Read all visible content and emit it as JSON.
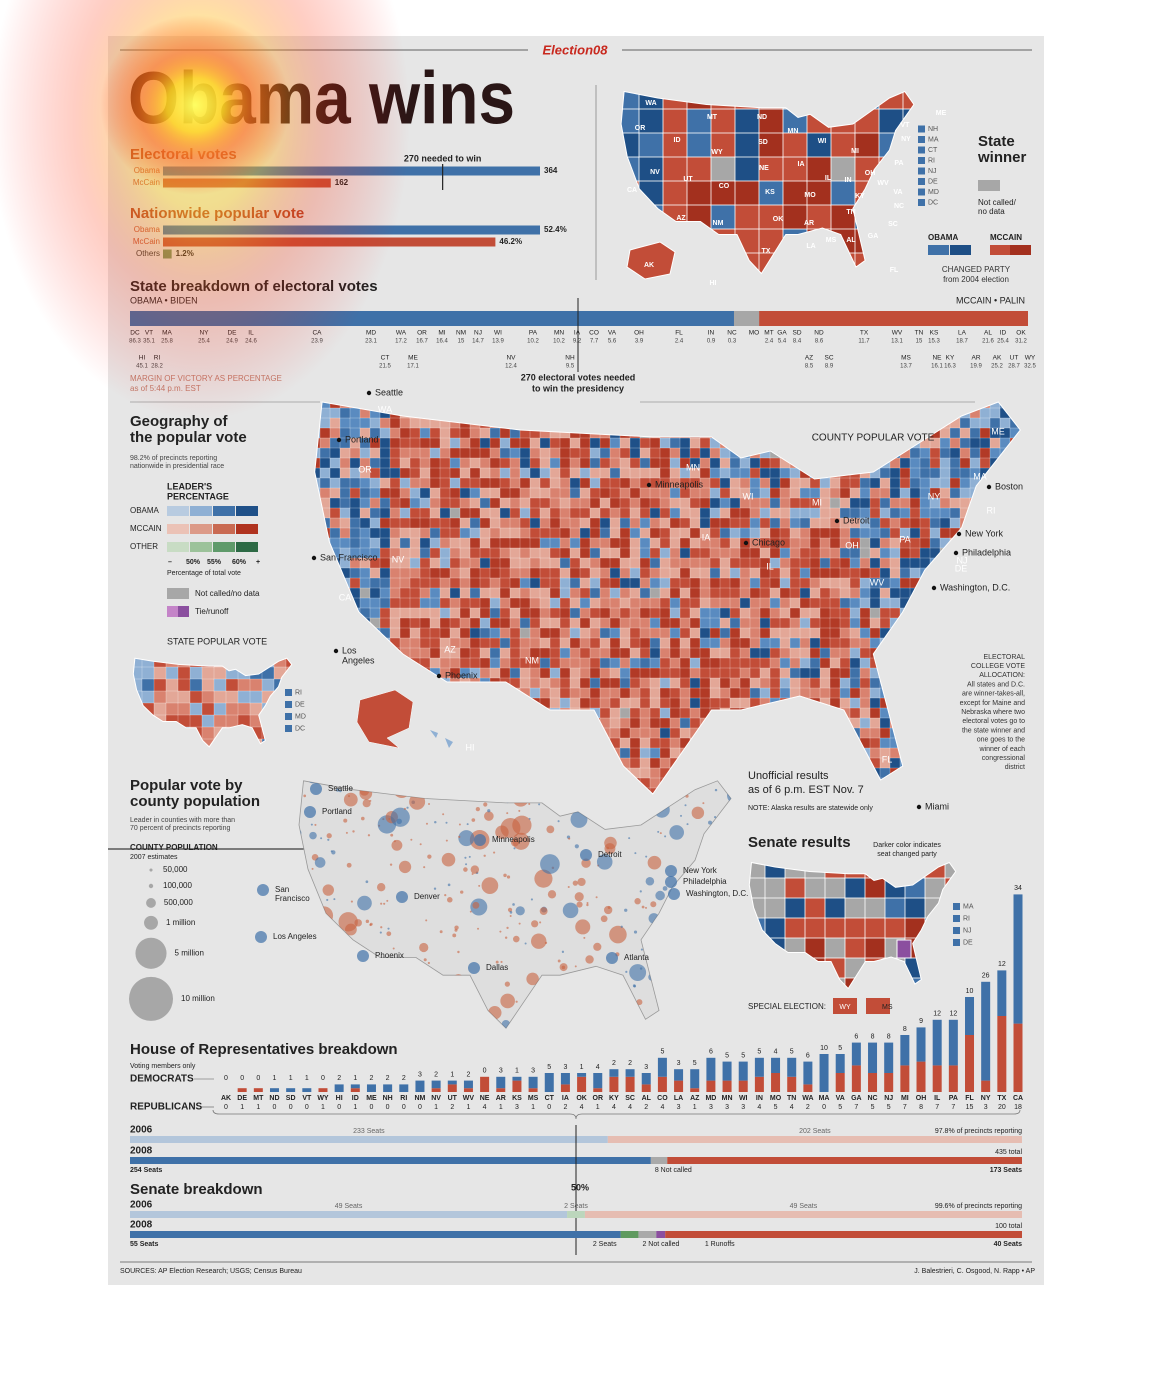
{
  "header": {
    "brand": "Election08",
    "title": "Obama wins"
  },
  "chart_data": [
    {
      "type": "hbar",
      "title": "Electoral votes",
      "annotation": "270 needed to win",
      "threshold": 270,
      "categories": [
        "Obama",
        "McCain"
      ],
      "values": [
        364,
        162
      ],
      "colors": [
        "#3f71a8",
        "#c24d38"
      ]
    },
    {
      "type": "hbar",
      "title": "Nationwide popular vote",
      "categories": [
        "Obama",
        "McCain",
        "Others"
      ],
      "values": [
        52.4,
        46.2,
        1.2
      ],
      "value_labels": [
        "52.4%",
        "46.2%",
        "1.2%"
      ],
      "colors": [
        "#3f71a8",
        "#c24d38",
        "#6f8f5f"
      ]
    },
    {
      "type": "ev-strip",
      "title": "State breakdown of electoral votes",
      "left_label": "OBAMA • BIDEN",
      "right_label": "MCCAIN • PALIN",
      "threshold_label": [
        "270 electoral votes needed",
        "to win the presidency"
      ],
      "note": [
        "MARGIN OF VICTORY AS PERCENTAGE",
        "as of 5:44 p.m. EST"
      ],
      "obama_states": {
        "categories": [
          "DC",
          "VT",
          "MA",
          "NY",
          "DE",
          "IL",
          "CA",
          "MD",
          "WA",
          "OR",
          "MI",
          "NM",
          "NJ",
          "WI",
          "PA",
          "MN",
          "IA",
          "CO",
          "VA",
          "OH",
          "FL",
          "IN",
          "NC",
          "HI",
          "RI",
          "CT",
          "ME",
          "NV",
          "NH"
        ],
        "values": [
          86.3,
          35.1,
          25.8,
          25.4,
          24.9,
          24.6,
          23.9,
          23.1,
          17.2,
          16.7,
          16.4,
          15,
          14.7,
          13.9,
          10.2,
          10.2,
          9.2,
          7.7,
          5.6,
          3.9,
          2.4,
          0.9,
          0.3,
          45.1,
          28.2,
          21.5,
          17.1,
          12.4,
          9.5
        ]
      },
      "mccain_states": {
        "categories": [
          "MO",
          "MT",
          "GA",
          "SD",
          "ND",
          "TX",
          "WV",
          "TN",
          "KS",
          "LA",
          "AL",
          "ID",
          "OK",
          "AZ",
          "SC",
          "MS",
          "NE",
          "KY",
          "AR",
          "AK",
          "UT",
          "WY"
        ],
        "values": [
          null,
          2.4,
          5.4,
          8.4,
          8.6,
          11.7,
          13.1,
          15,
          15.3,
          18.7,
          21.6,
          25.4,
          31.2,
          8.5,
          8.9,
          13.7,
          16.1,
          16.3,
          19.9,
          25.2,
          28.7,
          32.5
        ]
      }
    },
    {
      "type": "stacked-bar",
      "title": "House of Representatives breakdown",
      "subtitle": "Voting members only",
      "categories": [
        "AK",
        "DE",
        "MT",
        "ND",
        "SD",
        "VT",
        "WY",
        "HI",
        "ID",
        "ME",
        "NH",
        "RI",
        "NM",
        "NV",
        "UT",
        "WV",
        "NE",
        "AR",
        "KS",
        "MS",
        "CT",
        "IA",
        "OK",
        "OR",
        "KY",
        "SC",
        "AL",
        "CO",
        "LA",
        "AZ",
        "MD",
        "MN",
        "WI",
        "IN",
        "MO",
        "TN",
        "WA",
        "MA",
        "VA",
        "GA",
        "NC",
        "NJ",
        "MI",
        "OH",
        "IL",
        "PA",
        "FL",
        "NY",
        "TX",
        "CA"
      ],
      "series": [
        {
          "name": "DEMOCRATS",
          "color": "#3f71a8",
          "values": [
            0,
            0,
            0,
            1,
            1,
            1,
            0,
            2,
            1,
            2,
            2,
            2,
            3,
            2,
            1,
            2,
            0,
            3,
            1,
            3,
            5,
            3,
            1,
            4,
            2,
            2,
            3,
            5,
            3,
            5,
            6,
            5,
            5,
            5,
            4,
            5,
            6,
            10,
            5,
            6,
            8,
            8,
            8,
            9,
            12,
            12,
            10,
            26,
            12,
            34
          ]
        },
        {
          "name": "REPUBLICANS",
          "color": "#c24d38",
          "values": [
            0,
            1,
            1,
            0,
            0,
            0,
            1,
            0,
            1,
            0,
            0,
            0,
            0,
            1,
            2,
            1,
            4,
            1,
            3,
            1,
            0,
            2,
            4,
            1,
            4,
            4,
            2,
            4,
            3,
            1,
            3,
            3,
            3,
            4,
            5,
            4,
            2,
            0,
            5,
            7,
            5,
            5,
            7,
            8,
            7,
            7,
            15,
            3,
            20,
            18
          ]
        }
      ]
    },
    {
      "type": "seat-bar",
      "rows": [
        {
          "year": "2006",
          "note": "97.8% of precincts reporting",
          "segments": [
            {
              "value": 233,
              "label": "233 Seats",
              "color": "#b3c6db"
            },
            {
              "value": 202,
              "label": "202 Seats",
              "color": "#e6bdb2"
            }
          ]
        },
        {
          "year": "2008",
          "note": "435 total",
          "segments": [
            {
              "value": 254,
              "label": "254 Seats",
              "color": "#3f71a8"
            },
            {
              "value": 8,
              "label": "8 Not called",
              "color": "#a9a9a9"
            },
            {
              "value": 173,
              "label": "173 Seats",
              "color": "#c24d38"
            }
          ]
        }
      ]
    },
    {
      "type": "seat-bar",
      "title": "Senate breakdown",
      "midline_label": "50%",
      "rows": [
        {
          "year": "2006",
          "note": "99.6% of precincts reporting",
          "segments": [
            {
              "value": 49,
              "label": "49 Seats",
              "color": "#b3c6db"
            },
            {
              "value": 2,
              "label": "2 Seats",
              "color": "#bcd6bc"
            },
            {
              "value": 49,
              "label": "49 Seats",
              "color": "#e6bdb2"
            }
          ]
        },
        {
          "year": "2008",
          "note": "100 total",
          "segments": [
            {
              "value": 55,
              "label": "55 Seats",
              "color": "#3f71a8"
            },
            {
              "value": 2,
              "label": "2 Seats",
              "color": "#5f9a5f"
            },
            {
              "value": 2,
              "label": "2 Not called",
              "color": "#a9a9a9"
            },
            {
              "value": 1,
              "label": "1 Runoffs",
              "color": "#8b4f9f"
            },
            {
              "value": 40,
              "label": "40 Seats",
              "color": "#c24d38"
            }
          ]
        }
      ]
    }
  ],
  "state_map": {
    "title": [
      "State",
      "winner"
    ],
    "not_called": [
      "Not called/",
      "no data"
    ],
    "legend": [
      "OBAMA",
      "MCCAIN"
    ],
    "changed": [
      "CHANGED PARTY",
      "from 2004 election"
    ],
    "small_states": [
      "NH",
      "MA",
      "CT",
      "RI",
      "NJ",
      "DE",
      "MD",
      "DC"
    ],
    "labels": [
      "WA",
      "MT",
      "ND",
      "MN",
      "OR",
      "ID",
      "WY",
      "SD",
      "WI",
      "MI",
      "NY",
      "ME",
      "VT",
      "NV",
      "UT",
      "CO",
      "NE",
      "IA",
      "IL",
      "IN",
      "OH",
      "PA",
      "CA",
      "KS",
      "MO",
      "KY",
      "VA",
      "WV",
      "AZ",
      "NM",
      "OK",
      "AR",
      "TN",
      "NC",
      "SC",
      "TX",
      "LA",
      "MS",
      "AL",
      "GA",
      "FL",
      "AK",
      "HI"
    ]
  },
  "geography": {
    "title": [
      "Geography of",
      "the popular vote"
    ],
    "subtitle": [
      "98.2% of precincts reporting",
      "nationwide in presidential race"
    ],
    "legend_title": [
      "LEADER'S",
      "PERCENTAGE"
    ],
    "rows": [
      "OBAMA",
      "MCCAIN",
      "OTHER"
    ],
    "scale_labels": [
      "–",
      "50%",
      "55%",
      "60%",
      "+"
    ],
    "scale_caption": "Percentage of total vote",
    "not_called": "Not called/no data",
    "tie": "Tie/runoff",
    "inset_title": "STATE POPULAR VOTE",
    "inset_states": [
      "RI",
      "DE",
      "MD",
      "DC"
    ]
  },
  "county_map": {
    "title": "COUNTY POPULAR VOTE",
    "cities": [
      "Seattle",
      "Portland",
      "Minneapolis",
      "Boston",
      "Detroit",
      "New York",
      "Chicago",
      "Philadelphia",
      "San Francisco",
      "Washington, D.C.",
      [
        "Los",
        "Angeles"
      ],
      "Phoenix",
      "Miami"
    ],
    "state_labels": [
      "WA",
      "OR",
      "NV",
      "CA",
      "AZ",
      "NM",
      "MN",
      "WI",
      "MI",
      "IA",
      "IL",
      "OH",
      "PA",
      "NY",
      "ME",
      "MA",
      "RI",
      "NJ",
      "DE",
      "WV",
      "FL",
      "HI"
    ],
    "allocation": [
      "ELECTORAL",
      "COLLEGE VOTE",
      "ALLOCATION:",
      "All states and D.C.",
      "are winner-takes-all,",
      "except for Maine and",
      "Nebraska where two",
      "electoral votes go to",
      "the state winner and",
      "one goes to the",
      "winner of each",
      "congressional",
      "district"
    ],
    "results": [
      "Unofficial results",
      "as of 6 p.m. EST Nov. 7"
    ],
    "note": "NOTE: Alaska results are statewide only"
  },
  "population": {
    "title": [
      "Popular vote by",
      "county population"
    ],
    "subtitle": [
      "Leader in counties with more than",
      "70 percent of precincts reporting"
    ],
    "legend_title": "COUNTY POPULATION",
    "legend_subtitle": "2007 estimates",
    "sizes": [
      {
        "value": 50000,
        "label": "50,000"
      },
      {
        "value": 100000,
        "label": "100,000"
      },
      {
        "value": 500000,
        "label": "500,000"
      },
      {
        "value": 1000000,
        "label": "1 million"
      },
      {
        "value": 5000000,
        "label": "5 million"
      },
      {
        "value": 10000000,
        "label": "10 million"
      }
    ],
    "cities": [
      "Seattle",
      "Portland",
      "Minneapolis",
      "Detroit",
      "New York",
      "Philadelphia",
      "Washington, D.C.",
      [
        "San",
        "Francisco"
      ],
      "Denver",
      "Los Angeles",
      "Phoenix",
      "Dallas",
      "Atlanta"
    ]
  },
  "senate_map": {
    "title": "Senate results",
    "subtitle": [
      "Darker color indicates",
      "seat changed party"
    ],
    "small_states": [
      "MA",
      "RI",
      "NJ",
      "DE"
    ],
    "special": "SPECIAL ELECTION:",
    "special_states": [
      "WY",
      "MS"
    ]
  },
  "footer": {
    "sources": "SOURCES: AP Election Research; USGS; Census Bureau",
    "credit": "J. Balestrieri, C. Osgood, N. Rapp • AP"
  }
}
